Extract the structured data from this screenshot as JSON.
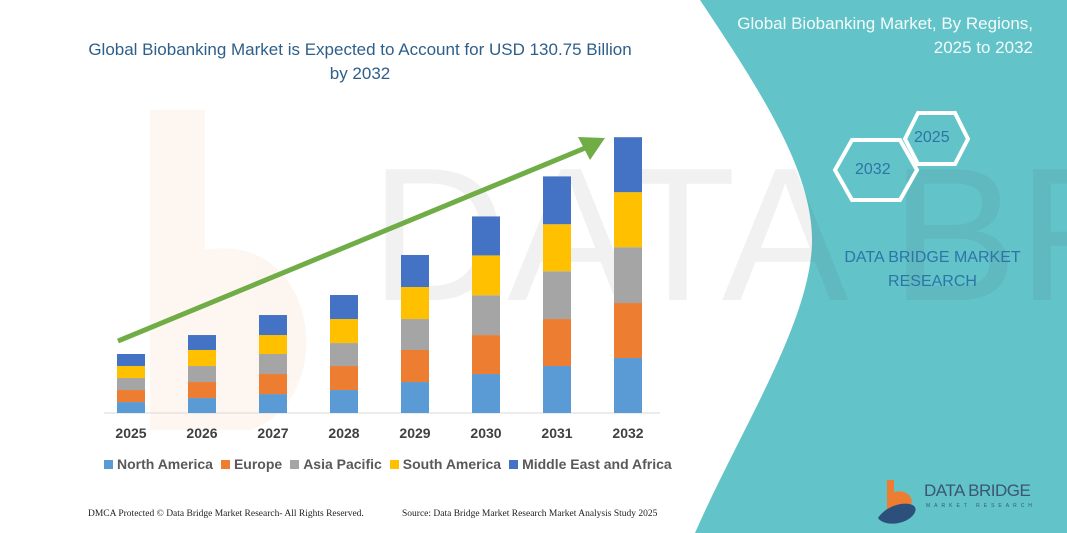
{
  "title": "Global Biobanking Market is Expected to Account for USD 130.75 Billion by 2032",
  "side_panel": {
    "title": "Global Biobanking Market, By Regions, 2025 to 2032",
    "hex_labels": [
      "2025",
      "2032"
    ],
    "brand_text": "DATA BRIDGE MARKET RESEARCH",
    "logo_text": "DATA BRIDGE",
    "logo_subtext": "MARKET RESEARCH",
    "panel_color": "#62c3c8"
  },
  "footer": {
    "copyright": "DMCA Protected © Data Bridge Market Research- All Rights Reserved.",
    "source": "Source: Data Bridge Market Research Market Analysis Study 2025"
  },
  "chart_data": {
    "type": "bar",
    "stacked": true,
    "title": "Global Biobanking Market is Expected to Account for USD 130.75 Billion by 2032",
    "unit": "USD Billion (estimated)",
    "categories": [
      "2025",
      "2026",
      "2027",
      "2028",
      "2029",
      "2030",
      "2031",
      "2032"
    ],
    "series": [
      {
        "name": "North America",
        "color": "#5b9bd5",
        "values": [
          5.2,
          7.1,
          9.0,
          10.9,
          14.7,
          18.5,
          22.3,
          26.1
        ]
      },
      {
        "name": "Europe",
        "color": "#ed7d31",
        "values": [
          5.7,
          7.6,
          9.5,
          11.4,
          15.2,
          18.5,
          22.3,
          26.1
        ]
      },
      {
        "name": "Asia Pacific",
        "color": "#a5a5a5",
        "values": [
          5.7,
          7.6,
          9.5,
          10.9,
          14.7,
          18.9,
          22.7,
          26.5
        ]
      },
      {
        "name": "South America",
        "color": "#ffc000",
        "values": [
          5.7,
          7.6,
          9.0,
          11.4,
          15.2,
          18.9,
          22.3,
          26.1
        ]
      },
      {
        "name": "Middle East and Africa",
        "color": "#4472c4",
        "values": [
          5.7,
          7.1,
          9.5,
          11.4,
          15.2,
          18.5,
          22.7,
          26.1
        ]
      }
    ],
    "ylim": [
      0,
      131
    ],
    "y_axis_shown": false,
    "grid": false,
    "legend_position": "bottom",
    "trend_arrow_color": "#70ad47"
  }
}
